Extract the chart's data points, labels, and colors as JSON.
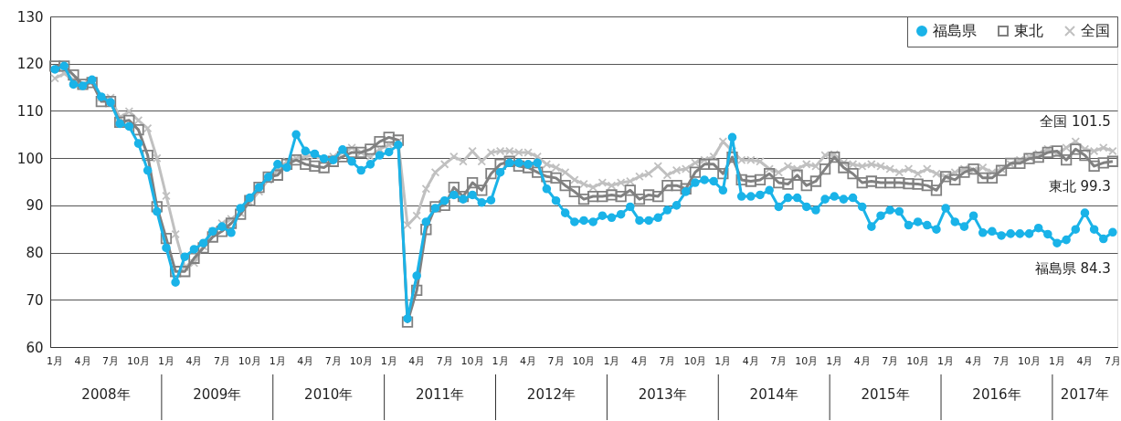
{
  "chart_data": {
    "type": "line",
    "categories": [
      "1月",
      null,
      null,
      "4月",
      null,
      null,
      "7月",
      null,
      null,
      "10月",
      null,
      null,
      "1月",
      null,
      null,
      "4月",
      null,
      null,
      "7月",
      null,
      null,
      "10月",
      null,
      null,
      "1月",
      null,
      null,
      "4月",
      null,
      null,
      "7月",
      null,
      null,
      "10月",
      null,
      null,
      "1月",
      null,
      null,
      "4月",
      null,
      null,
      "7月",
      null,
      null,
      "10月",
      null,
      null,
      "1月",
      null,
      null,
      "4月",
      null,
      null,
      "7月",
      null,
      null,
      "10月",
      null,
      null,
      "1月",
      null,
      null,
      "4月",
      null,
      null,
      "7月",
      null,
      null,
      "10月",
      null,
      null,
      "1月",
      null,
      null,
      "4月",
      null,
      null,
      "7月",
      null,
      null,
      "10月",
      null,
      null,
      "1月",
      null,
      null,
      "4月",
      null,
      null,
      "7月",
      null,
      null,
      "10月",
      null,
      null,
      "1月",
      null,
      null,
      "4月",
      null,
      null,
      "7月",
      null,
      null,
      "10月",
      null,
      null,
      "1月",
      null,
      null,
      "4月",
      null,
      null,
      "7月"
    ],
    "series": [
      {
        "name": "福島県",
        "color": "#1ab3e8",
        "marker": "circle",
        "values": [
          118.8,
          119.5,
          115.6,
          115.3,
          116.6,
          113,
          111.8,
          107.3,
          106.7,
          103.1,
          97.4,
          88.7,
          81,
          73.7,
          79.1,
          80.7,
          82,
          84.5,
          85.5,
          84.2,
          89.4,
          91.6,
          93.8,
          96,
          98.7,
          98,
          105,
          101.5,
          100.9,
          99.9,
          99.6,
          101.8,
          99.3,
          97.4,
          98.7,
          100.6,
          101.3,
          102.8,
          66,
          75.1,
          86.5,
          89.4,
          91,
          92.2,
          91.3,
          92.2,
          90.6,
          91.1,
          97,
          99,
          99,
          98.7,
          99,
          93.5,
          91,
          88.4,
          86.5,
          86.8,
          86.5,
          87.8,
          87.4,
          88.1,
          89.7,
          86.8,
          86.8,
          87.4,
          89,
          90,
          92.9,
          94.8,
          95.4,
          95.1,
          93.2,
          104.4,
          91.9,
          91.9,
          92.2,
          93.2,
          89.7,
          91.6,
          91.6,
          89.7,
          89,
          91.3,
          91.9,
          91.3,
          91.6,
          89.7,
          85.5,
          87.8,
          89,
          88.7,
          85.8,
          86.5,
          85.8,
          84.9,
          89.4,
          86.5,
          85.5,
          87.8,
          84.2,
          84.5,
          83.6,
          84,
          84,
          84,
          85.2,
          83.9,
          82,
          82.7,
          84.9,
          88.4,
          84.9,
          82.9,
          84.3
        ]
      },
      {
        "name": "東北",
        "color": "#808080",
        "marker": "square",
        "values": [
          119.5,
          119.5,
          117.6,
          115.6,
          116,
          112,
          112,
          107.6,
          108,
          106,
          100.6,
          89.7,
          83,
          76,
          76,
          78.8,
          81,
          83.3,
          84.5,
          86.2,
          88.1,
          91,
          93.8,
          96,
          96.4,
          98.7,
          99.6,
          98.7,
          98.3,
          98,
          99.3,
          100.3,
          101.2,
          101.2,
          101.9,
          103.5,
          104.4,
          103.8,
          65.3,
          72,
          84.9,
          89.7,
          90,
          93.8,
          91.9,
          94.8,
          93.2,
          96.7,
          98.7,
          99.3,
          98.3,
          98,
          97,
          96.1,
          95.8,
          94.2,
          92.9,
          91.3,
          91.9,
          91.9,
          92.2,
          91.9,
          93.2,
          91.3,
          92.2,
          91.9,
          94.2,
          94.2,
          93.5,
          97,
          98.7,
          98.7,
          96.7,
          100.2,
          95.4,
          95.1,
          95.4,
          96.7,
          94.8,
          94.5,
          96.4,
          94.2,
          95.1,
          97.7,
          100.2,
          98,
          96.7,
          94.8,
          95.1,
          94.8,
          94.8,
          94.8,
          94.6,
          94.5,
          94.2,
          93.2,
          96.1,
          95.4,
          97,
          97.7,
          95.8,
          95.8,
          97.4,
          98.9,
          98.9,
          99.9,
          100.2,
          101.2,
          101.5,
          99.6,
          101.9,
          100.6,
          98.3,
          99,
          99.3
        ]
      },
      {
        "name": "全国",
        "color": "#c0c0c0",
        "marker": "cross",
        "values": [
          116.9,
          117.9,
          116.6,
          115.6,
          116.3,
          112.8,
          112.8,
          108.6,
          109.9,
          108,
          106.3,
          100,
          92,
          83.9,
          76.9,
          77.8,
          81.3,
          84.5,
          86.2,
          87.1,
          88.4,
          90.6,
          92.9,
          95.4,
          97.4,
          99.3,
          100,
          100.3,
          100.6,
          99.6,
          100.3,
          101.2,
          102.2,
          101.2,
          100.3,
          101.9,
          102.8,
          103.5,
          85.8,
          87.8,
          93.5,
          97,
          98.7,
          100.3,
          99.3,
          101.5,
          99.3,
          101.2,
          101.5,
          101.5,
          101.2,
          101.2,
          100.3,
          98.7,
          98,
          97,
          95.4,
          94.5,
          93.8,
          94.8,
          94.2,
          94.8,
          95.1,
          96.1,
          96.7,
          98.3,
          96.4,
          97.4,
          97.7,
          99,
          99.6,
          100.3,
          103.5,
          101.5,
          99.6,
          99.6,
          99.3,
          97.7,
          97,
          98.3,
          97.7,
          98.7,
          98.3,
          100.6,
          100.8,
          99,
          98.7,
          98.3,
          98.7,
          98.3,
          97.7,
          97,
          97.7,
          96.7,
          97.7,
          96.7,
          96.1,
          97,
          97.7,
          97.4,
          98,
          97,
          97.7,
          98.7,
          99.6,
          100.2,
          100.9,
          101.9,
          100.9,
          102.2,
          103.5,
          101.9,
          101.5,
          102.2,
          101.5
        ]
      }
    ],
    "ylim": [
      60,
      130
    ],
    "yticks": [
      60,
      70,
      80,
      90,
      100,
      110,
      120,
      130
    ],
    "grid": "y",
    "legend": "top right",
    "line_style": "solid",
    "annotations": [
      "2008年",
      "2009年",
      "2010年",
      "2011年",
      "2012年",
      "2013年",
      "2014年",
      "2015年",
      "2016年",
      "2017年",
      {
        "text": "全国 101.5",
        "y": 101.5
      },
      {
        "text": "東北 99.3",
        "y": 99.3
      },
      {
        "text": "福島県 84.3",
        "y": 84.3
      }
    ]
  }
}
